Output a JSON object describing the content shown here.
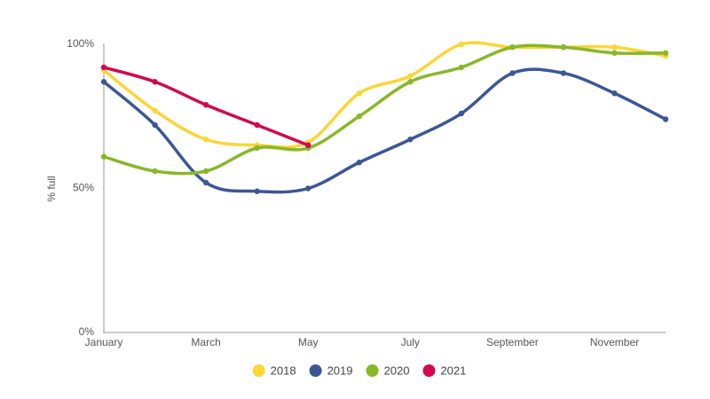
{
  "chart_data": {
    "type": "line",
    "y_label": "% full",
    "categories": [
      "January",
      null,
      "March",
      null,
      "May",
      null,
      "July",
      null,
      "September",
      null,
      "November",
      null
    ],
    "series": [
      {
        "name": "2018",
        "color": "#fbd636",
        "values": [
          91,
          77,
          67,
          65,
          66,
          83,
          89,
          100,
          99,
          99,
          99,
          96
        ]
      },
      {
        "name": "2019",
        "color": "#3b5796",
        "values": [
          87,
          72,
          52,
          49,
          50,
          59,
          67,
          76,
          90,
          90,
          83,
          74
        ]
      },
      {
        "name": "2020",
        "color": "#88b827",
        "values": [
          61,
          56,
          56,
          64,
          64,
          75,
          87,
          92,
          99,
          99,
          97,
          97
        ]
      },
      {
        "name": "2021",
        "color": "#d2094c",
        "values": [
          92,
          87,
          79,
          72,
          65,
          null,
          null,
          null,
          null,
          null,
          null,
          null
        ]
      }
    ],
    "ylim": [
      0,
      100
    ],
    "yticks": [
      {
        "value": 0,
        "label": "0%"
      },
      {
        "value": 50,
        "label": "50%"
      },
      {
        "value": 100,
        "label": "100%"
      }
    ],
    "grid": false,
    "legend": "bottom"
  }
}
